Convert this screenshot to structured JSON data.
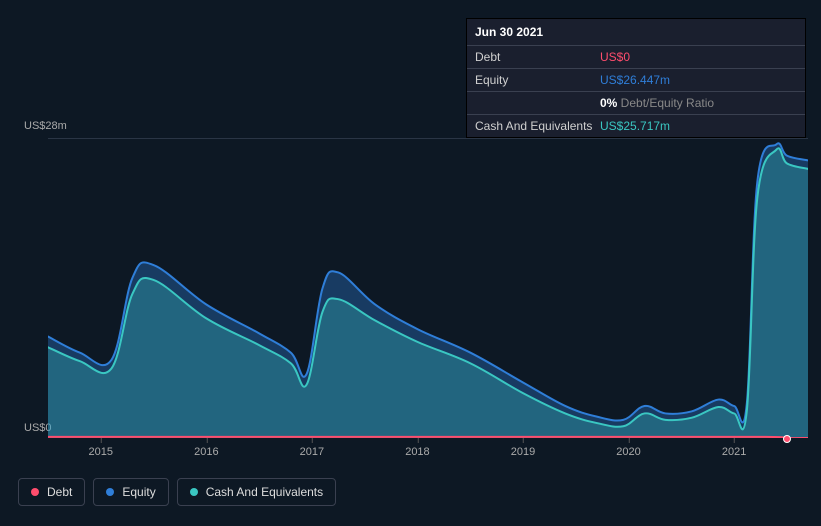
{
  "tooltip": {
    "date": "Jun 30 2021",
    "debt_label": "Debt",
    "debt_value": "US$0",
    "equity_label": "Equity",
    "equity_value": "US$26.447m",
    "ratio_pct": "0%",
    "ratio_label": " Debt/Equity Ratio",
    "cash_label": "Cash And Equivalents",
    "cash_value": "US$25.717m"
  },
  "chart": {
    "type": "area",
    "background_color": "#0d1824",
    "grid_color": "#2a3545",
    "y_max_label": "US$28m",
    "y_min_label": "US$0",
    "ylim": [
      0,
      28
    ],
    "x_years": [
      "2015",
      "2016",
      "2017",
      "2018",
      "2019",
      "2020",
      "2021"
    ],
    "x_domain": [
      2014.5,
      2021.7
    ],
    "series": {
      "equity": {
        "color": "#2f7ed8",
        "fill": "rgba(47,126,216,0.35)",
        "line_width": 2,
        "points": [
          [
            2014.5,
            9.5
          ],
          [
            2014.8,
            8.0
          ],
          [
            2015.1,
            7.3
          ],
          [
            2015.3,
            15.0
          ],
          [
            2015.5,
            16.2
          ],
          [
            2016.0,
            12.5
          ],
          [
            2016.5,
            9.8
          ],
          [
            2016.8,
            8.0
          ],
          [
            2016.95,
            6.0
          ],
          [
            2017.1,
            14.0
          ],
          [
            2017.25,
            15.5
          ],
          [
            2017.6,
            12.5
          ],
          [
            2018.0,
            10.2
          ],
          [
            2018.5,
            8.0
          ],
          [
            2019.0,
            5.2
          ],
          [
            2019.4,
            3.0
          ],
          [
            2019.7,
            2.0
          ],
          [
            2019.95,
            1.7
          ],
          [
            2020.15,
            3.0
          ],
          [
            2020.35,
            2.3
          ],
          [
            2020.6,
            2.5
          ],
          [
            2020.85,
            3.6
          ],
          [
            2021.0,
            3.0
          ],
          [
            2021.12,
            3.2
          ],
          [
            2021.22,
            24.0
          ],
          [
            2021.4,
            27.5
          ],
          [
            2021.5,
            26.447
          ],
          [
            2021.7,
            26.0
          ]
        ]
      },
      "cash": {
        "color": "#3ac7c2",
        "fill": "rgba(58,199,194,0.30)",
        "line_width": 2,
        "points": [
          [
            2014.5,
            8.5
          ],
          [
            2014.8,
            7.2
          ],
          [
            2015.1,
            6.5
          ],
          [
            2015.3,
            13.5
          ],
          [
            2015.5,
            14.8
          ],
          [
            2016.0,
            11.2
          ],
          [
            2016.5,
            8.7
          ],
          [
            2016.8,
            7.0
          ],
          [
            2016.95,
            5.0
          ],
          [
            2017.1,
            11.8
          ],
          [
            2017.25,
            13.0
          ],
          [
            2017.6,
            11.0
          ],
          [
            2018.0,
            9.0
          ],
          [
            2018.5,
            7.0
          ],
          [
            2019.0,
            4.2
          ],
          [
            2019.4,
            2.3
          ],
          [
            2019.7,
            1.4
          ],
          [
            2019.95,
            1.1
          ],
          [
            2020.15,
            2.3
          ],
          [
            2020.35,
            1.7
          ],
          [
            2020.6,
            1.9
          ],
          [
            2020.85,
            2.9
          ],
          [
            2021.0,
            2.3
          ],
          [
            2021.12,
            2.5
          ],
          [
            2021.22,
            22.5
          ],
          [
            2021.4,
            27.0
          ],
          [
            2021.5,
            25.717
          ],
          [
            2021.7,
            25.2
          ]
        ]
      },
      "debt": {
        "color": "#ff4d6d",
        "line_width": 2,
        "points": [
          [
            2014.5,
            0.1
          ],
          [
            2016.0,
            0.1
          ],
          [
            2018.0,
            0.1
          ],
          [
            2020.0,
            0.1
          ],
          [
            2021.3,
            0.1
          ],
          [
            2021.5,
            0
          ],
          [
            2021.7,
            0
          ]
        ]
      }
    },
    "marker": {
      "x": 2021.5,
      "y_debt": 0,
      "color_debt": "#ff4d6d"
    }
  },
  "legend": [
    {
      "name": "Debt",
      "color": "#ff4d6d"
    },
    {
      "name": "Equity",
      "color": "#2f7ed8"
    },
    {
      "name": "Cash And Equivalents",
      "color": "#3ac7c2"
    }
  ]
}
